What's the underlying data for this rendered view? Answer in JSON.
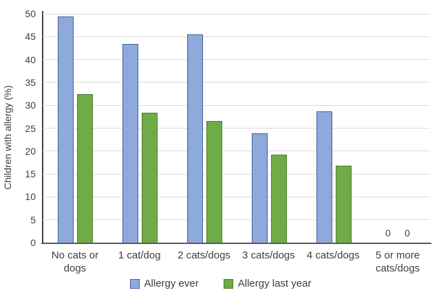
{
  "chart_data": {
    "type": "bar",
    "title": "",
    "xlabel": "",
    "ylabel": "Children with allergy (%)",
    "ylim": [
      0,
      50
    ],
    "yticks": [
      0,
      5,
      10,
      15,
      20,
      25,
      30,
      35,
      40,
      45,
      50
    ],
    "grid": true,
    "legend_position": "bottom",
    "categories": [
      "No cats or dogs",
      "1 cat/dog",
      "2 cats/dogs",
      "3 cats/dogs",
      "4 cats/dogs",
      "5 or more cats/dogs"
    ],
    "series": [
      {
        "name": "Allergy ever",
        "color": "#8EA9DB",
        "border": "#44608F",
        "values": [
          49.3,
          43.3,
          45.3,
          23.7,
          28.6,
          0
        ]
      },
      {
        "name": "Allergy last year",
        "color": "#6FAC47",
        "border": "#4F7A2D",
        "values": [
          32.3,
          28.3,
          26.5,
          19.0,
          16.6,
          0
        ]
      }
    ],
    "colors": {
      "gridline": "#dcdcdc",
      "axis": "#595959",
      "text": "#3d3d3d"
    }
  }
}
